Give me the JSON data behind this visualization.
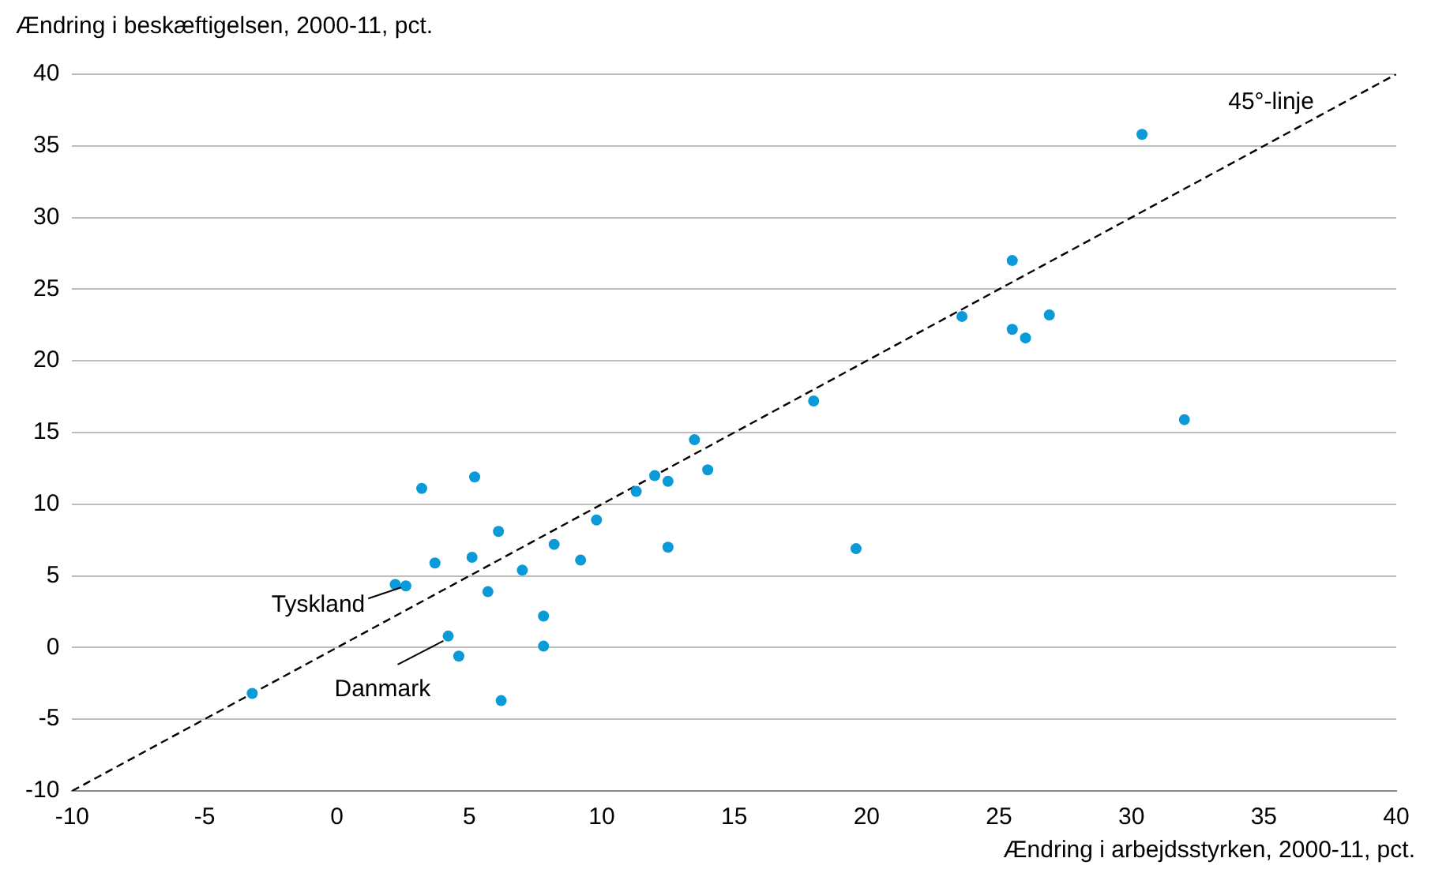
{
  "chart_data": {
    "type": "scatter",
    "xlabel": "Ændring i arbejdsstyrken, 2000-11, pct.",
    "ylabel": "Ændring i beskæftigelsen, 2000-11, pct.",
    "xlim": [
      -10,
      40
    ],
    "xticks": [
      -10,
      -5,
      0,
      5,
      10,
      15,
      20,
      25,
      30,
      35,
      40
    ],
    "ylim": [
      -10,
      40
    ],
    "yticks": [
      -10,
      -5,
      0,
      5,
      10,
      15,
      20,
      25,
      30,
      35,
      40
    ],
    "grid": "y",
    "legend": false,
    "marker": "circle",
    "series": [
      {
        "color": "#0a9ad7",
        "x": [
          -3.2,
          30.4,
          25.5,
          23.6,
          26.9,
          25.5,
          26.0,
          18.0,
          32.0,
          13.5,
          14.0,
          12.0,
          12.5,
          11.3,
          3.2,
          5.2,
          9.8,
          6.1,
          8.2,
          12.5,
          19.6,
          5.1,
          3.7,
          9.2,
          7.0,
          2.2,
          2.6,
          5.7,
          7.8,
          4.2,
          7.8,
          4.6,
          6.2
        ],
        "values": [
          -3.2,
          35.8,
          27.0,
          23.1,
          23.2,
          22.2,
          21.6,
          17.2,
          15.9,
          14.5,
          12.4,
          12.0,
          11.6,
          10.9,
          11.1,
          11.9,
          8.9,
          8.1,
          7.2,
          7.0,
          6.9,
          6.3,
          5.9,
          6.1,
          5.4,
          4.4,
          4.3,
          3.9,
          2.2,
          0.8,
          0.1,
          -0.6,
          -3.7
        ]
      },
      {
        "type": "line",
        "name": "45°-linje",
        "color": "#000000",
        "line_style": "dashed",
        "marker": "none",
        "x": [
          -10,
          40
        ],
        "values": [
          -10,
          40
        ]
      }
    ],
    "annotations": [
      {
        "text": "Tyskland",
        "x": 2.6,
        "y": 4.3
      },
      {
        "text": "Danmark",
        "x": 4.2,
        "y": 0.8
      }
    ]
  }
}
